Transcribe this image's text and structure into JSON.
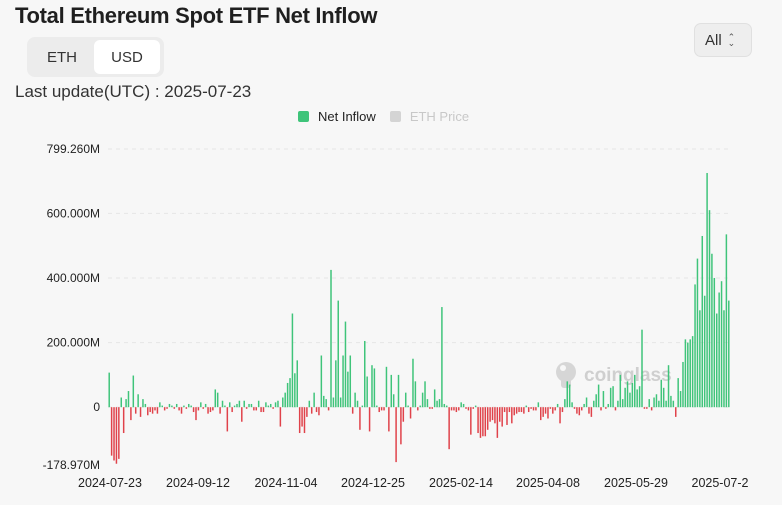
{
  "header": {
    "title": "Total Ethereum Spot ETF Net Inflow",
    "last_update": "Last update(UTC) : 2025-07-23"
  },
  "unit_toggle": {
    "options": [
      "ETH",
      "USD"
    ],
    "selected": "USD"
  },
  "range_select": {
    "value": "All"
  },
  "legend": {
    "items": [
      {
        "label": "Net Inflow",
        "color": "#3fc47a",
        "active": true
      },
      {
        "label": "ETH Price",
        "color": "#d4d4d4",
        "active": false
      }
    ]
  },
  "watermark": "coinglass",
  "colors": {
    "positive": "#3fc47a",
    "negative": "#e0424a",
    "grid": "#e6e6e6"
  },
  "chart_data": {
    "type": "bar",
    "title": "Total Ethereum Spot ETF Net Inflow",
    "y_unit": "USD",
    "ylim": [
      -178.97,
      799.26
    ],
    "ytick_labels": [
      "799.260M",
      "600.000M",
      "400.000M",
      "200.000M",
      "0",
      "-178.970M"
    ],
    "ytick_values": [
      799.26,
      600,
      400,
      200,
      0,
      -178.97
    ],
    "xtick_labels": [
      "2024-07-23",
      "2024-09-12",
      "2024-11-04",
      "2024-12-25",
      "2025-02-14",
      "2025-04-08",
      "2025-05-29",
      "2025-07-2"
    ],
    "x_start": "2024-07-23",
    "x_end": "2025-07-23",
    "values_musd": [
      107,
      -150,
      -165,
      -175,
      -160,
      30,
      -80,
      25,
      50,
      -40,
      98,
      -20,
      40,
      -30,
      25,
      10,
      -25,
      -15,
      -20,
      -10,
      -20,
      15,
      5,
      -10,
      -5,
      10,
      5,
      -5,
      10,
      -10,
      -20,
      5,
      -5,
      10,
      5,
      -15,
      -40,
      -10,
      15,
      -5,
      10,
      -20,
      -15,
      -10,
      55,
      45,
      -20,
      20,
      5,
      -75,
      15,
      -15,
      5,
      10,
      20,
      -45,
      20,
      -5,
      10,
      10,
      -10,
      -10,
      20,
      -15,
      -15,
      15,
      5,
      10,
      -5,
      15,
      20,
      -60,
      30,
      45,
      75,
      90,
      290,
      105,
      145,
      -80,
      -60,
      -80,
      -30,
      20,
      -20,
      45,
      -15,
      -25,
      160,
      35,
      25,
      -10,
      425,
      30,
      145,
      330,
      30,
      160,
      265,
      110,
      160,
      -20,
      45,
      20,
      -70,
      5,
      205,
      95,
      -75,
      130,
      120,
      5,
      -15,
      -10,
      -10,
      125,
      -75,
      100,
      40,
      -170,
      100,
      -115,
      -45,
      45,
      5,
      -35,
      150,
      80,
      -10,
      5,
      45,
      80,
      25,
      -5,
      -5,
      55,
      20,
      25,
      310,
      10,
      5,
      -130,
      -10,
      -10,
      -15,
      -10,
      15,
      10,
      -5,
      -10,
      -85,
      -5,
      5,
      -80,
      -95,
      -90,
      -90,
      -70,
      -45,
      -40,
      -50,
      -95,
      -45,
      -60,
      -15,
      -55,
      -15,
      -50,
      -25,
      -20,
      -15,
      -15,
      -20,
      5,
      -15,
      -5,
      -10,
      -10,
      15,
      -40,
      -30,
      -20,
      -35,
      -5,
      -20,
      -10,
      10,
      -50,
      -15,
      25,
      80,
      70,
      15,
      -5,
      -20,
      -25,
      -10,
      10,
      30,
      -20,
      -30,
      20,
      40,
      70,
      -10,
      50,
      -5,
      10,
      60,
      65,
      -10,
      20,
      100,
      25,
      60,
      80,
      45,
      75,
      100,
      55,
      65,
      240,
      -5,
      -5,
      25,
      -10,
      30,
      40,
      20,
      85,
      60,
      20,
      130,
      35,
      20,
      -30,
      90,
      50,
      140,
      210,
      200,
      210,
      220,
      380,
      460,
      300,
      530,
      345,
      725,
      610,
      475,
      400,
      290,
      355,
      390,
      300,
      535,
      330
    ]
  }
}
